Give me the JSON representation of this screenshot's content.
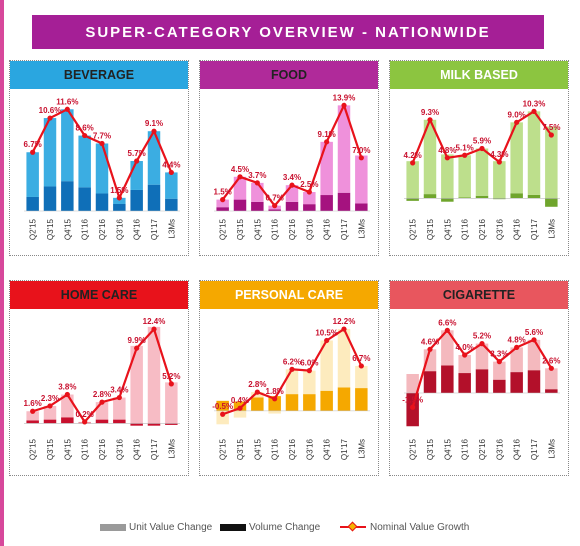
{
  "page": {
    "title": "SUPER-CATEGORY OVERVIEW - NATIONWIDE",
    "frame_color": "#d7489b",
    "banner_color": "#a51f96"
  },
  "legend": {
    "unit_value": {
      "label": "Unit Value Change",
      "color": "#9a9a9a"
    },
    "volume": {
      "label": "Volume Change",
      "color": "#111111"
    },
    "nominal": {
      "label": "Nominal Value Growth",
      "line_color": "#e8121b",
      "marker_color": "#f5b400"
    }
  },
  "chart_data": [
    {
      "type": "bar+line",
      "title": "BEVERAGE",
      "header_color": "#2aa6e0",
      "bar_color": "#2aa6e0",
      "bar_dark_color": "#0f6fb8",
      "categories": [
        "Q2'15",
        "Q3'15",
        "Q4'15",
        "Q1'16",
        "Q2'16",
        "Q3'16",
        "Q4'16",
        "Q1'17",
        "L3Ms"
      ],
      "series": [
        {
          "name": "Unit Value Change",
          "values": [
            5.1,
            7.8,
            8.2,
            5.9,
            5.7,
            0.7,
            3.3,
            6.1,
            3.0
          ]
        },
        {
          "name": "Volume Change",
          "values": [
            1.6,
            2.8,
            3.4,
            2.7,
            2.0,
            0.8,
            2.4,
            3.0,
            1.4
          ]
        },
        {
          "name": "Nominal Value Growth",
          "values": [
            6.7,
            10.6,
            11.6,
            8.6,
            7.7,
            1.5,
            5.7,
            9.1,
            4.4
          ]
        }
      ],
      "data_labels": [
        "6.7%",
        "10.6%",
        "11.6%",
        "8.6%",
        "7.7%",
        "1.5%",
        "5.7%",
        "9.1%",
        "4.4%"
      ],
      "ylim": [
        0,
        13
      ]
    },
    {
      "type": "bar+line",
      "title": "FOOD",
      "header_color": "#b02a9a",
      "bar_color": "#ee88d8",
      "bar_dark_color": "#a5127f",
      "categories": [
        "Q2'15",
        "Q3'15",
        "Q4'15",
        "Q1'16",
        "Q2'16",
        "Q3'16",
        "Q4'16",
        "Q1'17",
        "L3Ms"
      ],
      "series": [
        {
          "name": "Unit Value Change",
          "values": [
            1.0,
            3.0,
            2.5,
            0.5,
            2.2,
            1.6,
            7.0,
            11.5,
            6.3
          ]
        },
        {
          "name": "Volume Change",
          "values": [
            0.5,
            1.5,
            1.2,
            0.2,
            1.2,
            0.9,
            2.1,
            2.4,
            1.0
          ]
        },
        {
          "name": "Nominal Value Growth",
          "values": [
            1.5,
            4.5,
            3.7,
            0.7,
            3.4,
            2.5,
            9.1,
            13.9,
            7.0
          ]
        }
      ],
      "data_labels": [
        "1.5%",
        "4.5%",
        "3.7%",
        "0.7%",
        "3.4%",
        "2.5%",
        "9.1%",
        "13.9%",
        "7.0%"
      ],
      "ylim": [
        0,
        15
      ]
    },
    {
      "type": "bar+line",
      "title": "MILK BASED",
      "header_color": "#8cc540",
      "bar_color": "#b7dc82",
      "bar_dark_color": "#6fa52c",
      "categories": [
        "Q2'15",
        "Q3'15",
        "Q4'15",
        "Q1'16",
        "Q2'16",
        "Q3'16",
        "Q4'16",
        "Q1'17",
        "L3Ms"
      ],
      "series": [
        {
          "name": "Unit Value Change",
          "values": [
            4.4,
            8.8,
            5.2,
            5.0,
            5.6,
            4.4,
            8.4,
            9.9,
            8.5
          ]
        },
        {
          "name": "Volume Change",
          "values": [
            -0.3,
            0.5,
            -0.4,
            0.1,
            0.3,
            -0.1,
            0.6,
            0.4,
            -1.0
          ]
        },
        {
          "name": "Nominal Value Growth",
          "values": [
            4.2,
            9.3,
            4.8,
            5.1,
            5.9,
            4.3,
            9.0,
            10.3,
            7.5
          ]
        }
      ],
      "data_labels": [
        "4.2%",
        "9.3%",
        "4.8%",
        "5.1%",
        "5.9%",
        "4.3%",
        "9.0%",
        "10.3%",
        "7.5%"
      ],
      "ylim": [
        -1.5,
        12
      ]
    },
    {
      "type": "bar+line",
      "title": "HOME CARE",
      "header_color": "#e8121b",
      "bar_color": "#f6b6c0",
      "bar_dark_color": "#c8102e",
      "categories": [
        "Q2'15",
        "Q3'15",
        "Q4'15",
        "Q1'16",
        "Q2'16",
        "Q3'16",
        "Q4'16",
        "Q1'17",
        "L3Ms"
      ],
      "series": [
        {
          "name": "Unit Value Change",
          "values": [
            1.2,
            1.8,
            3.0,
            0.1,
            2.3,
            2.9,
            10.2,
            12.7,
            5.4
          ]
        },
        {
          "name": "Volume Change",
          "values": [
            0.4,
            0.5,
            0.8,
            0.1,
            0.5,
            0.5,
            -0.3,
            -0.3,
            -0.2
          ]
        },
        {
          "name": "Nominal Value Growth",
          "values": [
            1.6,
            2.3,
            3.8,
            0.2,
            2.8,
            3.4,
            9.9,
            12.4,
            5.2
          ]
        }
      ],
      "data_labels": [
        "1.6%",
        "2.3%",
        "3.8%",
        "0.2%",
        "2.8%",
        "3.4%",
        "9.9%",
        "12.4%",
        "5.2%"
      ],
      "ylim": [
        -1,
        14
      ]
    },
    {
      "type": "bar+line",
      "title": "PERSONAL CARE",
      "header_color": "#f5a800",
      "bar_color": "#fde9b8",
      "bar_dark_color": "#f5a800",
      "categories": [
        "Q2'15",
        "Q3'15",
        "Q4'15",
        "Q1'16",
        "Q2'16",
        "Q3'16",
        "Q4'16",
        "Q1'17",
        "L3Ms"
      ],
      "series": [
        {
          "name": "Unit Value Change",
          "values": [
            -2.0,
            -1.0,
            0.8,
            -0.4,
            3.7,
            3.5,
            7.5,
            8.7,
            3.3
          ]
        },
        {
          "name": "Volume Change",
          "values": [
            1.5,
            1.4,
            2.0,
            2.2,
            2.5,
            2.5,
            3.0,
            3.5,
            3.4
          ]
        },
        {
          "name": "Nominal Value Growth",
          "values": [
            -0.5,
            0.4,
            2.8,
            1.8,
            6.2,
            6.0,
            10.5,
            12.2,
            6.7
          ]
        }
      ],
      "data_labels": [
        "-0.5%",
        "0.4%",
        "2.8%",
        "1.8%",
        "6.2%",
        "6.0%",
        "10.5%",
        "12.2%",
        "6.7%"
      ],
      "ylim": [
        -3,
        14
      ]
    },
    {
      "type": "bar+line",
      "title": "CIGARETTE",
      "header_color": "#e8565e",
      "bar_color": "#f3b3b8",
      "bar_dark_color": "#b3102a",
      "categories": [
        "Q2'15",
        "Q3'15",
        "Q4'15",
        "Q1'16",
        "Q2'16",
        "Q3'16",
        "Q4'16",
        "Q1'17",
        "L3Ms"
      ],
      "series": [
        {
          "name": "Unit Value Change",
          "values": [
            2.0,
            2.3,
            3.7,
            1.9,
            2.7,
            1.9,
            2.6,
            3.2,
            2.2
          ]
        },
        {
          "name": "Volume Change",
          "values": [
            -3.5,
            2.3,
            2.9,
            2.1,
            2.5,
            1.4,
            2.2,
            2.4,
            0.4
          ]
        },
        {
          "name": "Nominal Value Growth",
          "values": [
            -1.5,
            4.6,
            6.6,
            4.0,
            5.2,
            3.3,
            4.8,
            5.6,
            2.6
          ]
        }
      ],
      "data_labels": [
        "-1.5%",
        "4.6%",
        "6.6%",
        "4.0%",
        "5.2%",
        "3.3%",
        "4.8%",
        "5.6%",
        "2.6%"
      ],
      "ylim": [
        -4,
        8
      ]
    }
  ]
}
